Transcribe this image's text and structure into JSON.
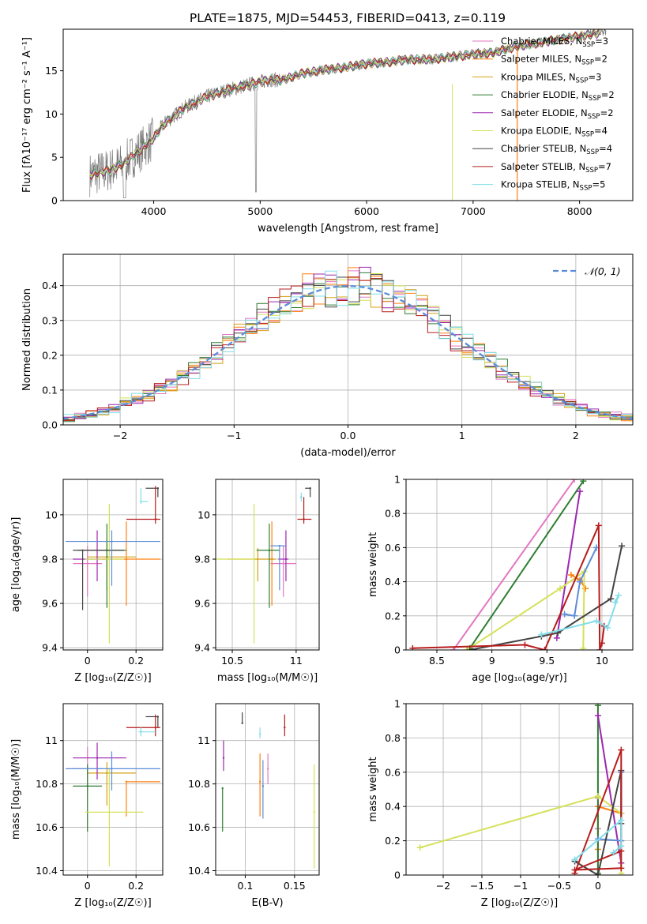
{
  "figure_title": "PLATE=1875, MJD=54453, FIBERID=0413, z=0.119",
  "colors": {
    "chabrier_miles": "#e377c2",
    "salpeter_miles": "#ff7f0e",
    "kroupa_miles": "#d4a017",
    "chabrier_elodie": "#2e7d32",
    "salpeter_elodie": "#9c27b0",
    "kroupa_elodie": "#d4e157",
    "chabrier_stelib": "#444444",
    "salpeter_stelib": "#b71c1c",
    "kroupa_stelib": "#80deea",
    "gauss": "#5b8dd9",
    "grid": "#b0b0b0"
  },
  "chart_data": [
    {
      "id": "spectrum",
      "type": "line",
      "xlabel": "wavelength [Angstrom, rest frame]",
      "ylabel": "Flux [fλ10⁻¹⁷ erg cm⁻² s⁻¹ A⁻¹]",
      "xlim": [
        3150,
        8500
      ],
      "ylim": [
        0,
        19.8
      ],
      "xticks": [
        4000,
        5000,
        6000,
        7000,
        8000
      ],
      "yticks": [
        0,
        5,
        10,
        15
      ],
      "grid": false,
      "legend": "top-right",
      "continuum": {
        "x": [
          3400,
          3550,
          3700,
          3850,
          4000,
          4100,
          4300,
          4500,
          4700,
          4900,
          5100,
          5200,
          5400,
          5600,
          5800,
          6000,
          6200,
          6400,
          6600,
          6800,
          7000,
          7200,
          7400,
          7600,
          7800,
          8000,
          8200
        ],
        "y": [
          3.0,
          3.4,
          4.1,
          5.6,
          7.2,
          8.9,
          10.8,
          12.0,
          12.8,
          13.4,
          14.0,
          13.9,
          14.7,
          15.1,
          15.4,
          15.8,
          16.0,
          16.3,
          16.3,
          16.6,
          16.9,
          17.1,
          17.8,
          18.2,
          18.6,
          19.0,
          19.4
        ]
      },
      "series": [
        {
          "name": "Chabrier MILES, N_SSP=3"
        },
        {
          "name": "Salpeter MILES, N_SSP=2"
        },
        {
          "name": "Kroupa MILES, N_SSP=3"
        },
        {
          "name": "Chabrier ELODIE, N_SSP=2"
        },
        {
          "name": "Salpeter ELODIE, N_SSP=2"
        },
        {
          "name": "Kroupa ELODIE, N_SSP=4"
        },
        {
          "name": "Chabrier STELIB, N_SSP=4"
        },
        {
          "name": "Salpeter STELIB, N_SSP=7"
        },
        {
          "name": "Kroupa STELIB, N_SSP=5"
        }
      ]
    },
    {
      "id": "residuals",
      "type": "line",
      "xlabel": "(data-model)/error",
      "ylabel": "Normed distribution",
      "xlim": [
        -2.5,
        2.5
      ],
      "ylim": [
        0,
        0.49
      ],
      "xticks": [
        -2,
        -1,
        0,
        1,
        2
      ],
      "yticks": [
        0.0,
        0.1,
        0.2,
        0.3,
        0.4
      ],
      "grid": true,
      "legend": "top-right",
      "legend_label": "𝒩(0, 1)"
    },
    {
      "id": "age_vs_Z",
      "type": "scatter",
      "xlabel": "Z [log₁₀(Z/Z☉)]",
      "ylabel": "age  [log₁₀(age/yr)]",
      "xlim": [
        -0.1,
        0.31
      ],
      "ylim": [
        9.39,
        10.16
      ],
      "xticks": [
        0.0,
        0.2
      ],
      "yticks": [
        9.4,
        9.6,
        9.8,
        10.0
      ],
      "grid": true,
      "points": [
        {
          "s": "chabrier_miles",
          "x": 0.0,
          "xerr": [
            0.06,
            0.06
          ],
          "y": 9.78,
          "yerr": [
            0.15,
            0.08
          ]
        },
        {
          "s": "salpeter_miles",
          "x": 0.16,
          "xerr": [
            0.1,
            0.14
          ],
          "y": 9.8,
          "yerr": [
            0.21,
            0.17
          ]
        },
        {
          "s": "kroupa_miles",
          "x": 0.08,
          "xerr": [
            0.08,
            0.12
          ],
          "y": 9.81,
          "yerr": [
            0.15,
            0.08
          ]
        },
        {
          "s": "chabrier_elodie",
          "x": 0.08,
          "xerr": [
            0.12,
            0.08
          ],
          "y": 9.84,
          "yerr": [
            0.26,
            0.12
          ]
        },
        {
          "s": "salpeter_elodie",
          "x": 0.04,
          "xerr": [
            0.1,
            0.04
          ],
          "y": 9.8,
          "yerr": [
            0.1,
            0.13
          ]
        },
        {
          "s": "kroupa_elodie",
          "x": 0.09,
          "xerr": [
            0.1,
            0.06
          ],
          "y": 9.8,
          "yerr": [
            0.38,
            0.25
          ]
        },
        {
          "s": "chabrier_stelib",
          "x": 0.29,
          "xerr": [
            0.05,
            0.0
          ],
          "y": 10.12,
          "yerr": [
            0.04,
            0.0
          ]
        },
        {
          "s": "salpeter_stelib",
          "x": 0.28,
          "xerr": [
            0.12,
            0.02
          ],
          "y": 9.98,
          "yerr": [
            0.02,
            0.15
          ]
        },
        {
          "s": "kroupa_stelib",
          "x": 0.22,
          "xerr": [
            0.0,
            0.03
          ],
          "y": 10.06,
          "yerr": [
            0.01,
            0.06
          ]
        },
        {
          "s": "chabrier_stelib",
          "x": -0.02,
          "xerr": [
            0.04,
            0.17
          ],
          "y": 9.84,
          "yerr": [
            0.27,
            0.0
          ]
        },
        {
          "s": "gauss",
          "x": 0.1,
          "xerr": [
            0.19,
            0.2
          ],
          "y": 9.88,
          "yerr": [
            0.2,
            0.05
          ]
        }
      ]
    },
    {
      "id": "age_vs_mass",
      "type": "scatter",
      "xlabel": "mass [log₁₀(M/M☉)]",
      "ylabel": "",
      "xlim": [
        10.37,
        11.18
      ],
      "ylim": [
        9.39,
        10.16
      ],
      "xticks": [
        10.5,
        11.0
      ],
      "yticks": [
        9.4,
        9.6,
        9.8,
        10.0
      ],
      "grid": true,
      "points": [
        {
          "s": "chabrier_miles",
          "x": 10.9,
          "xerr": [
            0.1,
            0.1
          ],
          "y": 9.78,
          "yerr": [
            0.15,
            0.08
          ]
        },
        {
          "s": "salpeter_miles",
          "x": 10.81,
          "xerr": [
            0.02,
            0.02
          ],
          "y": 9.8,
          "yerr": [
            0.21,
            0.17
          ]
        },
        {
          "s": "kroupa_miles",
          "x": 10.7,
          "xerr": [
            0.24,
            0.14
          ],
          "y": 9.8,
          "yerr": [
            0.1,
            0.05
          ]
        },
        {
          "s": "chabrier_elodie",
          "x": 10.79,
          "xerr": [
            0.1,
            0.08
          ],
          "y": 9.84,
          "yerr": [
            0.26,
            0.12
          ]
        },
        {
          "s": "salpeter_elodie",
          "x": 10.92,
          "xerr": [
            0.06,
            0.02
          ],
          "y": 9.8,
          "yerr": [
            0.1,
            0.13
          ]
        },
        {
          "s": "kroupa_elodie",
          "x": 10.67,
          "xerr": [
            0.35,
            0.0
          ],
          "y": 9.8,
          "yerr": [
            0.38,
            0.25
          ]
        },
        {
          "s": "chabrier_stelib",
          "x": 11.11,
          "xerr": [
            0.04,
            0.0
          ],
          "y": 10.12,
          "yerr": [
            0.04,
            0.0
          ]
        },
        {
          "s": "salpeter_stelib",
          "x": 11.06,
          "xerr": [
            0.05,
            0.06
          ],
          "y": 9.98,
          "yerr": [
            0.02,
            0.1
          ]
        },
        {
          "s": "kroupa_stelib",
          "x": 11.04,
          "xerr": [
            0.01,
            0.01
          ],
          "y": 10.08,
          "yerr": [
            0.02,
            0.02
          ]
        },
        {
          "s": "gauss",
          "x": 10.87,
          "xerr": [
            0.07,
            0.05
          ],
          "y": 9.86,
          "yerr": [
            0.2,
            0.0
          ]
        }
      ]
    },
    {
      "id": "weight_vs_age",
      "type": "line",
      "xlabel": "age  [log₁₀(age/yr)]",
      "ylabel": "mass weight",
      "xlim": [
        8.22,
        10.28
      ],
      "ylim": [
        0,
        1.0
      ],
      "xticks": [
        8.5,
        9.0,
        9.5,
        10.0
      ],
      "yticks": [
        0.0,
        0.2,
        0.4,
        0.6,
        0.8,
        1.0
      ],
      "grid": true,
      "series": [
        {
          "s": "chabrier_miles",
          "x": [
            8.65,
            9.75
          ],
          "y": [
            0.0,
            1.0
          ]
        },
        {
          "s": "salpeter_miles",
          "x": [
            9.72,
            9.8,
            9.85
          ],
          "y": [
            0.44,
            0.41,
            0.36
          ]
        },
        {
          "s": "chabrier_elodie",
          "x": [
            8.8,
            9.83
          ],
          "y": [
            0.01,
            0.99
          ]
        },
        {
          "s": "salpeter_elodie",
          "x": [
            9.59,
            9.8
          ],
          "y": [
            0.07,
            0.93
          ]
        },
        {
          "s": "kroupa_elodie",
          "x": [
            8.77,
            9.62,
            9.84,
            9.83
          ],
          "y": [
            0.0,
            0.36,
            0.46,
            0.01
          ]
        },
        {
          "s": "gauss",
          "x": [
            9.66,
            9.75,
            9.8,
            9.95
          ],
          "y": [
            0.21,
            0.2,
            0.4,
            0.6
          ]
        },
        {
          "s": "chabrier_stelib",
          "x": [
            8.8,
            9.45,
            9.6,
            10.08,
            10.18
          ],
          "y": [
            0.0,
            0.08,
            0.1,
            0.3,
            0.61
          ]
        },
        {
          "s": "salpeter_stelib",
          "x": [
            8.28,
            9.3,
            9.48,
            9.97,
            9.98,
            10.0,
            10.02
          ],
          "y": [
            0.01,
            0.03,
            0.0,
            0.73,
            0.0,
            0.04,
            0.14
          ]
        },
        {
          "s": "kroupa_stelib",
          "x": [
            9.45,
            9.95,
            10.05,
            10.15,
            10.12
          ],
          "y": [
            0.09,
            0.17,
            0.13,
            0.32,
            0.28
          ]
        }
      ]
    },
    {
      "id": "mass_vs_Z",
      "type": "scatter",
      "xlabel": "Z [log₁₀(Z/Z☉)]",
      "ylabel": "mass [log₁₀(M/M☉)]",
      "xlim": [
        -0.1,
        0.31
      ],
      "ylim": [
        10.38,
        11.17
      ],
      "xticks": [
        0.0,
        0.2
      ],
      "yticks": [
        10.4,
        10.6,
        10.8,
        11.0
      ],
      "grid": true,
      "points": [
        {
          "s": "chabrier_miles",
          "x": 0.0,
          "xerr": [
            0.06,
            0.06
          ],
          "y": 10.87,
          "yerr": [
            0.1,
            0.1
          ]
        },
        {
          "s": "salpeter_miles",
          "x": 0.16,
          "xerr": [
            0.0,
            0.14
          ],
          "y": 10.81,
          "yerr": [
            0.16,
            0.0
          ]
        },
        {
          "s": "kroupa_miles",
          "x": 0.08,
          "xerr": [
            0.08,
            0.12
          ],
          "y": 10.85,
          "yerr": [
            0.15,
            0.05
          ]
        },
        {
          "s": "chabrier_elodie",
          "x": 0.0,
          "xerr": [
            0.06,
            0.06
          ],
          "y": 10.79,
          "yerr": [
            0.21,
            0.1
          ]
        },
        {
          "s": "salpeter_elodie",
          "x": 0.04,
          "xerr": [
            0.1,
            0.12
          ],
          "y": 10.92,
          "yerr": [
            0.1,
            0.07
          ]
        },
        {
          "s": "kroupa_elodie",
          "x": 0.09,
          "xerr": [
            0.1,
            0.14
          ],
          "y": 10.67,
          "yerr": [
            0.25,
            0.2
          ]
        },
        {
          "s": "chabrier_stelib",
          "x": 0.29,
          "xerr": [
            0.05,
            0.0
          ],
          "y": 11.11,
          "yerr": [
            0.05,
            0.0
          ]
        },
        {
          "s": "salpeter_stelib",
          "x": 0.28,
          "xerr": [
            0.12,
            0.02
          ],
          "y": 11.06,
          "yerr": [
            0.04,
            0.06
          ]
        },
        {
          "s": "kroupa_stelib",
          "x": 0.22,
          "xerr": [
            0.01,
            0.06
          ],
          "y": 11.04,
          "yerr": [
            0.02,
            0.02
          ]
        },
        {
          "s": "gauss",
          "x": 0.1,
          "xerr": [
            0.19,
            0.2
          ],
          "y": 10.87,
          "yerr": [
            0.1,
            0.08
          ]
        }
      ]
    },
    {
      "id": "mass_vs_ebv",
      "type": "scatter",
      "xlabel": "E(B-V)",
      "ylabel": "",
      "xlim": [
        0.07,
        0.175
      ],
      "ylim": [
        10.38,
        11.17
      ],
      "xticks": [
        0.1,
        0.15
      ],
      "yticks": [
        10.6,
        10.8,
        11.0,
        10.4
      ],
      "grid": true,
      "points": [
        {
          "s": "chabrier_elodie",
          "x": 0.077,
          "y": 10.78,
          "yerr": [
            0.2,
            0.0
          ]
        },
        {
          "s": "salpeter_elodie",
          "x": 0.078,
          "y": 10.92,
          "yerr": [
            0.06,
            0.08
          ]
        },
        {
          "s": "chabrier_stelib",
          "x": 0.097,
          "y": 11.08,
          "yerr": [
            0.0,
            0.05
          ]
        },
        {
          "s": "kroupa_stelib",
          "x": 0.115,
          "y": 11.03,
          "yerr": [
            0.02,
            0.03
          ]
        },
        {
          "s": "salpeter_miles",
          "x": 0.115,
          "y": 10.81,
          "yerr": [
            0.16,
            0.13
          ]
        },
        {
          "s": "gauss",
          "x": 0.118,
          "y": 10.79,
          "yerr": [
            0.15,
            0.12
          ]
        },
        {
          "s": "chabrier_miles",
          "x": 0.123,
          "y": 10.87,
          "yerr": [
            0.07,
            0.07
          ]
        },
        {
          "s": "salpeter_stelib",
          "x": 0.14,
          "y": 11.06,
          "yerr": [
            0.04,
            0.06
          ]
        },
        {
          "s": "kroupa_elodie",
          "x": 0.17,
          "y": 10.67,
          "yerr": [
            0.26,
            0.22
          ]
        }
      ]
    },
    {
      "id": "weight_vs_Z",
      "type": "line",
      "xlabel": "Z [log₁₀(Z/Z☉)]",
      "ylabel": "mass weight",
      "xlim": [
        -2.48,
        0.45
      ],
      "ylim": [
        0,
        1.0
      ],
      "xticks": [
        -2.0,
        -1.5,
        -1.0,
        -0.5,
        0.0
      ],
      "yticks": [
        0.0,
        0.2,
        0.4,
        0.6,
        0.8,
        1.0
      ],
      "grid": true,
      "series": [
        {
          "s": "chabrier_miles",
          "x": [
            0.0,
            0.0,
            0.0
          ],
          "y": [
            0.0,
            0.27,
            0.45
          ]
        },
        {
          "s": "salpeter_miles",
          "x": [
            0.0,
            0.0,
            0.3
          ],
          "y": [
            0.15,
            0.4,
            0.36
          ]
        },
        {
          "s": "chabrier_elodie",
          "x": [
            0.0,
            0.0
          ],
          "y": [
            0.01,
            0.99
          ]
        },
        {
          "s": "salpeter_elodie",
          "x": [
            0.0,
            0.3
          ],
          "y": [
            0.93,
            0.07
          ]
        },
        {
          "s": "kroupa_elodie",
          "x": [
            -2.3,
            0.0,
            0.3,
            0.3
          ],
          "y": [
            0.16,
            0.46,
            0.36,
            0.01
          ]
        },
        {
          "s": "gauss",
          "x": [
            0.0,
            0.3,
            0.3
          ],
          "y": [
            0.21,
            0.2,
            0.6
          ]
        },
        {
          "s": "chabrier_stelib",
          "x": [
            -0.3,
            0.0,
            0.3,
            0.3
          ],
          "y": [
            0.08,
            0.0,
            0.61,
            0.3
          ]
        },
        {
          "s": "salpeter_stelib",
          "x": [
            -0.3,
            0.3,
            0.3,
            -0.3,
            0.3
          ],
          "y": [
            0.01,
            0.73,
            0.04,
            0.03,
            0.14
          ]
        },
        {
          "s": "kroupa_stelib",
          "x": [
            -0.3,
            0.3,
            0.3,
            0.2
          ],
          "y": [
            0.09,
            0.32,
            0.17,
            0.13
          ]
        }
      ]
    }
  ]
}
